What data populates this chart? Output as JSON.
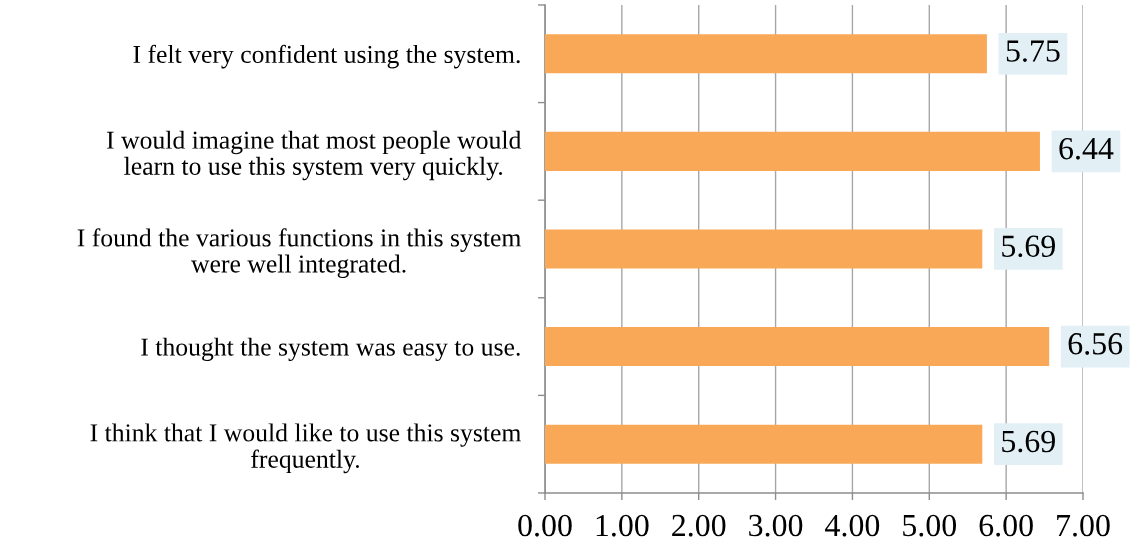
{
  "chart_data": {
    "type": "bar",
    "orientation": "horizontal",
    "categories": [
      "I felt very confident using the system.",
      "I would imagine that most people would\nlearn to use this system very quickly.",
      "I found the various functions in this system\nwere well integrated.",
      "I thought the system was easy to use.",
      "I think that I would like to use this system\nfrequently."
    ],
    "values": [
      5.75,
      6.44,
      5.69,
      6.56,
      5.69
    ],
    "color": "#f9a857",
    "xlim": [
      0,
      7
    ],
    "xticks": [
      {
        "value": 0,
        "label": "0.00"
      },
      {
        "value": 1,
        "label": "1.00"
      },
      {
        "value": 2,
        "label": "2.00"
      },
      {
        "value": 3,
        "label": "3.00"
      },
      {
        "value": 4,
        "label": "4.00"
      },
      {
        "value": 5,
        "label": "5.00"
      },
      {
        "value": 6,
        "label": "6.00"
      },
      {
        "value": 7,
        "label": "7.00"
      }
    ],
    "grid": "x",
    "data_labels": true
  }
}
